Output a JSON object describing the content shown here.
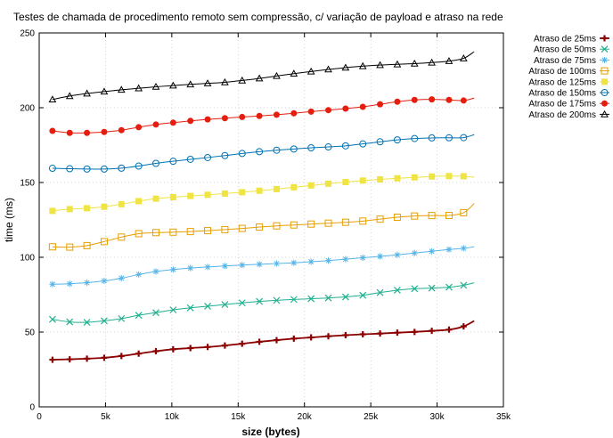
{
  "chart_data": {
    "type": "line",
    "title": "Testes de chamada de procedimento remoto sem compressão, c/ variação de payload e atraso na rede",
    "xlabel": "size (bytes)",
    "ylabel": "time (ms)",
    "xlim": [
      0,
      35000
    ],
    "ylim": [
      0,
      250
    ],
    "xticks": [
      0,
      5000,
      10000,
      15000,
      20000,
      25000,
      30000,
      35000
    ],
    "xtick_labels": [
      "0",
      "5k",
      "10k",
      "15k",
      "20k",
      "25k",
      "30k",
      "35k"
    ],
    "yticks": [
      0,
      50,
      100,
      150,
      200,
      250
    ],
    "ytick_labels": [
      "0",
      "50",
      "100",
      "150",
      "200",
      "250"
    ],
    "grid": true,
    "legend_position": "outside-top-right",
    "x": [
      1000,
      2300,
      3600,
      4900,
      6200,
      7500,
      8800,
      10100,
      11400,
      12700,
      14000,
      15300,
      16600,
      17900,
      19200,
      20500,
      21800,
      23100,
      24400,
      25700,
      27000,
      28300,
      29600,
      30900,
      32000
    ],
    "series": [
      {
        "name": "Atraso de 25ms",
        "color": "#8b0000",
        "marker": "plus",
        "values": [
          31.5,
          31.8,
          32.2,
          32.8,
          34.0,
          35.6,
          37.2,
          38.5,
          39.3,
          40.0,
          41.0,
          42.2,
          43.5,
          44.6,
          45.6,
          46.4,
          47.2,
          47.9,
          48.5,
          49.0,
          49.6,
          50.1,
          50.8,
          51.6,
          53.8
        ],
        "line_end": [
          32800,
          57.5
        ]
      },
      {
        "name": "Atraso de 50ms",
        "color": "#20b090",
        "marker": "cross",
        "values": [
          58.5,
          56.8,
          56.5,
          57.5,
          59.0,
          61.2,
          63.0,
          64.8,
          66.2,
          67.3,
          68.4,
          69.5,
          70.5,
          71.2,
          71.8,
          72.3,
          72.8,
          73.5,
          74.6,
          76.4,
          78.0,
          79.0,
          79.4,
          80.0,
          81.3
        ],
        "line_end": [
          32800,
          83.0
        ]
      },
      {
        "name": "Atraso de 75ms",
        "color": "#56b4e9",
        "marker": "star",
        "values": [
          82.0,
          82.3,
          83.0,
          84.2,
          86.0,
          88.5,
          90.5,
          91.8,
          92.8,
          93.5,
          94.2,
          94.8,
          95.3,
          95.8,
          96.3,
          97.0,
          97.8,
          98.7,
          99.7,
          100.6,
          101.6,
          102.8,
          104.0,
          105.2,
          106.0
        ],
        "line_end": [
          32800,
          107.0
        ]
      },
      {
        "name": "Atraso de 100ms",
        "color": "#e69f00",
        "marker": "square-open",
        "values": [
          107.0,
          106.8,
          107.8,
          110.5,
          113.5,
          115.8,
          116.5,
          116.8,
          117.2,
          117.8,
          118.5,
          119.3,
          120.2,
          121.0,
          121.6,
          122.2,
          122.8,
          123.4,
          124.2,
          125.5,
          126.8,
          127.6,
          127.9,
          128.0,
          129.8
        ],
        "line_end": [
          32800,
          136.0
        ]
      },
      {
        "name": "Atraso de 125ms",
        "color": "#f0e442",
        "marker": "square-filled",
        "values": [
          131.0,
          132.2,
          132.8,
          133.8,
          135.5,
          137.5,
          139.2,
          140.2,
          141.0,
          141.8,
          142.6,
          143.5,
          144.5,
          145.6,
          146.8,
          148.0,
          149.2,
          150.3,
          151.3,
          152.1,
          152.8,
          153.4,
          154.0,
          154.3,
          154.2
        ],
        "line_end": [
          32800,
          153.5
        ]
      },
      {
        "name": "Atraso de 150ms",
        "color": "#0072b2",
        "marker": "circle-open",
        "values": [
          159.5,
          159.2,
          159.0,
          159.0,
          159.6,
          161.0,
          162.8,
          164.2,
          165.5,
          166.7,
          168.0,
          169.4,
          170.6,
          171.6,
          172.4,
          173.2,
          173.8,
          174.5,
          175.8,
          177.2,
          178.5,
          179.4,
          179.8,
          179.9,
          180.0
        ],
        "line_end": [
          32800,
          182.0
        ]
      },
      {
        "name": "Atraso de 175ms",
        "color": "#e51e10",
        "marker": "circle-filled",
        "values": [
          184.5,
          183.2,
          183.2,
          183.8,
          185.0,
          187.0,
          188.8,
          190.0,
          191.2,
          192.2,
          193.0,
          193.8,
          194.5,
          195.3,
          196.3,
          197.4,
          198.4,
          199.4,
          200.6,
          202.3,
          204.0,
          205.2,
          205.6,
          205.2,
          204.8
        ],
        "line_end": [
          32800,
          206.5
        ]
      },
      {
        "name": "Atraso de 200ms",
        "color": "#000000",
        "marker": "triangle-open",
        "values": [
          205.5,
          207.8,
          209.5,
          210.8,
          212.0,
          213.0,
          214.0,
          214.8,
          215.6,
          216.3,
          217.0,
          218.2,
          219.6,
          221.2,
          222.8,
          224.2,
          225.6,
          226.8,
          227.8,
          228.5,
          229.0,
          229.5,
          230.2,
          231.2,
          233.0
        ],
        "line_end": [
          32800,
          237.5
        ]
      }
    ]
  }
}
